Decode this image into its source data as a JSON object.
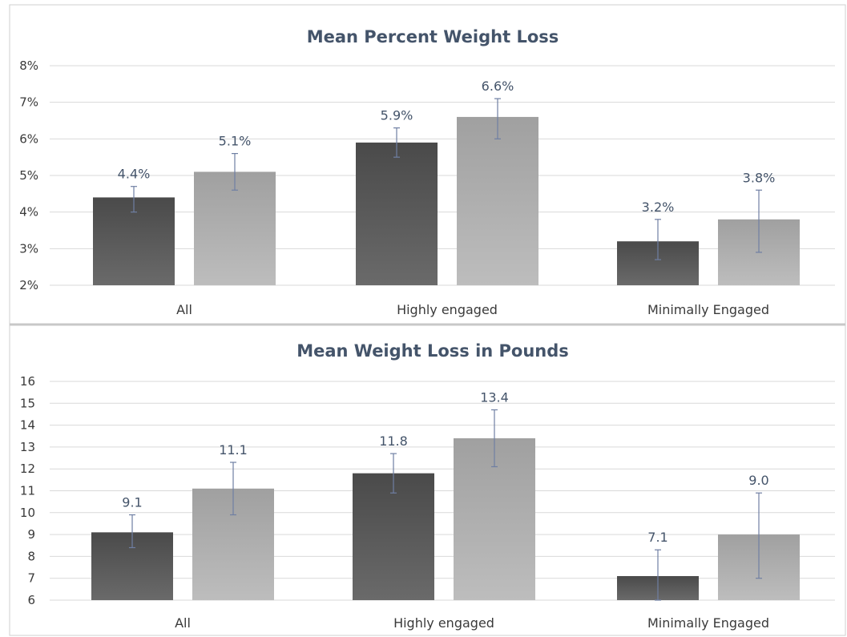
{
  "chart_data": [
    {
      "type": "bar",
      "title": "Mean Percent Weight Loss",
      "categories": [
        "All",
        "Highly engaged",
        "Minimally Engaged"
      ],
      "ylim": [
        2,
        8
      ],
      "yticks": [
        2,
        3,
        4,
        5,
        6,
        7,
        8
      ],
      "ytick_labels": [
        "2%",
        "3%",
        "4%",
        "5%",
        "6%",
        "7%",
        "8%"
      ],
      "grid": true,
      "series": [
        {
          "values": [
            4.4,
            5.9,
            3.2
          ],
          "labels": [
            "4.4%",
            "5.9%",
            "3.2%"
          ],
          "error_low": [
            4.0,
            5.5,
            2.7
          ],
          "error_high": [
            4.7,
            6.3,
            3.8
          ],
          "color": "#555555"
        },
        {
          "values": [
            5.1,
            6.6,
            3.8
          ],
          "labels": [
            "5.1%",
            "6.6%",
            "3.8%"
          ],
          "error_low": [
            4.6,
            6.0,
            2.9
          ],
          "error_high": [
            5.6,
            7.1,
            4.6
          ],
          "color": "#a8a8a8"
        }
      ]
    },
    {
      "type": "bar",
      "title": "Mean Weight Loss in Pounds",
      "categories": [
        "All",
        "Highly engaged",
        "Minimally Engaged"
      ],
      "ylim": [
        6,
        16
      ],
      "yticks": [
        6,
        7,
        8,
        9,
        10,
        11,
        12,
        13,
        14,
        15,
        16
      ],
      "ytick_labels": [
        "6",
        "7",
        "8",
        "9",
        "10",
        "11",
        "12",
        "13",
        "14",
        "15",
        "16"
      ],
      "grid": true,
      "series": [
        {
          "values": [
            9.1,
            11.8,
            7.1
          ],
          "labels": [
            "9.1",
            "11.8",
            "7.1"
          ],
          "error_low": [
            8.4,
            10.9,
            6.0
          ],
          "error_high": [
            9.9,
            12.7,
            8.3
          ],
          "color": "#555555"
        },
        {
          "values": [
            11.1,
            13.4,
            9.0
          ],
          "labels": [
            "11.1",
            "13.4",
            "9.0"
          ],
          "error_low": [
            9.9,
            12.1,
            7.0
          ],
          "error_high": [
            12.3,
            14.7,
            10.9
          ],
          "color": "#a8a8a8"
        }
      ]
    }
  ],
  "colors": {
    "title": "#44546a",
    "grid": "#d9d9d9",
    "errorbar": "#6f7fa3",
    "separator": "#c8c8c8"
  }
}
